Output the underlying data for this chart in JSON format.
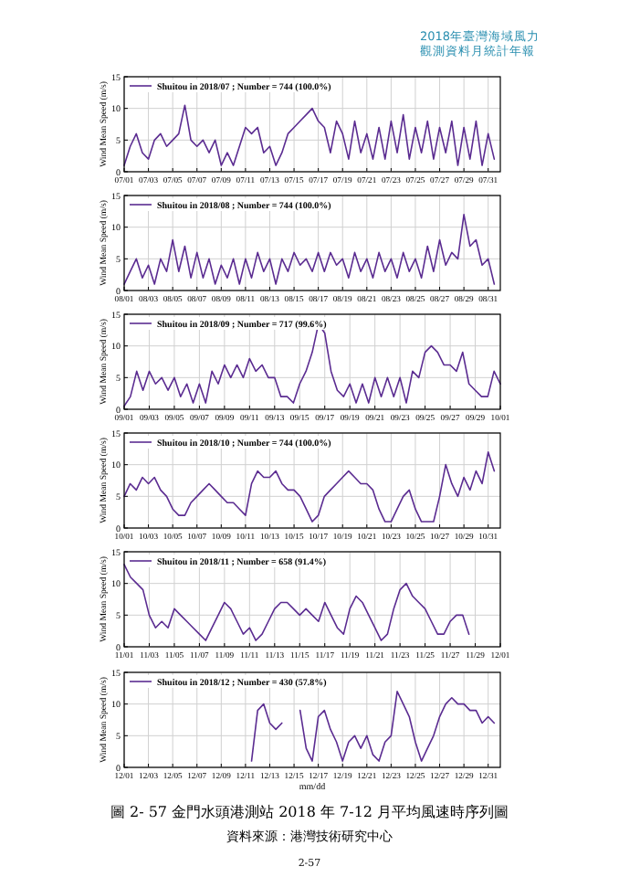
{
  "chart_data": [
    {
      "type": "line",
      "ylabel": "Wind Mean Speed (m/s)",
      "ylim": [
        0,
        15
      ],
      "yticks": [
        0,
        5,
        10,
        15
      ],
      "grid": true,
      "legend": "top left",
      "annotations": [
        "2018年臺灣海域風力",
        "觀測資料月統計年報"
      ],
      "xlim": [
        "2018-07-01",
        "2018-08-01"
      ],
      "xticks": [
        {
          "value": "2018-07-01",
          "label": "07/01"
        },
        {
          "value": "2018-07-03",
          "label": "07/03"
        },
        {
          "value": "2018-07-05",
          "label": "07/05"
        },
        {
          "value": "2018-07-07",
          "label": "07/07"
        },
        {
          "value": "2018-07-09",
          "label": "07/09"
        },
        {
          "value": "2018-07-11",
          "label": "07/11"
        },
        {
          "value": "2018-07-13",
          "label": "07/13"
        },
        {
          "value": "2018-07-15",
          "label": "07/15"
        },
        {
          "value": "2018-07-17",
          "label": "07/17"
        },
        {
          "value": "2018-07-19",
          "label": "07/19"
        },
        {
          "value": "2018-07-21",
          "label": "07/21"
        },
        {
          "value": "2018-07-23",
          "label": "07/23"
        },
        {
          "value": "2018-07-25",
          "label": "07/25"
        },
        {
          "value": "2018-07-27",
          "label": "07/27"
        },
        {
          "value": "2018-07-29",
          "label": "07/29"
        },
        {
          "value": "2018-07-31",
          "label": "07/31"
        }
      ],
      "series": [
        {
          "name": "Shuitou in 2018/07 ; Number = 744 (100.0%)",
          "color": "#5b2c91",
          "x": [
            "2018-07-01",
            "2018-07-01T12:00",
            "2018-07-02",
            "2018-07-02T12:00",
            "2018-07-03",
            "2018-07-03T12:00",
            "2018-07-04",
            "2018-07-04T12:00",
            "2018-07-05",
            "2018-07-05T12:00",
            "2018-07-06",
            "2018-07-06T12:00",
            "2018-07-07",
            "2018-07-07T12:00",
            "2018-07-08",
            "2018-07-08T12:00",
            "2018-07-09",
            "2018-07-09T12:00",
            "2018-07-10",
            "2018-07-10T12:00",
            "2018-07-11",
            "2018-07-11T12:00",
            "2018-07-12",
            "2018-07-12T12:00",
            "2018-07-13",
            "2018-07-13T12:00",
            "2018-07-14",
            "2018-07-14T12:00",
            "2018-07-15",
            "2018-07-15T12:00",
            "2018-07-16",
            "2018-07-16T12:00",
            "2018-07-17",
            "2018-07-17T12:00",
            "2018-07-18",
            "2018-07-18T12:00",
            "2018-07-19",
            "2018-07-19T12:00",
            "2018-07-20",
            "2018-07-20T12:00",
            "2018-07-21",
            "2018-07-21T12:00",
            "2018-07-22",
            "2018-07-22T12:00",
            "2018-07-23",
            "2018-07-23T12:00",
            "2018-07-24",
            "2018-07-24T12:00",
            "2018-07-25",
            "2018-07-25T12:00",
            "2018-07-26",
            "2018-07-26T12:00",
            "2018-07-27",
            "2018-07-27T12:00",
            "2018-07-28",
            "2018-07-28T12:00",
            "2018-07-29",
            "2018-07-29T12:00",
            "2018-07-30",
            "2018-07-30T12:00",
            "2018-07-31",
            "2018-07-31T12:00"
          ],
          "values": [
            1,
            4,
            6,
            3,
            2,
            5,
            6,
            4,
            5,
            6,
            10.5,
            5,
            4,
            5,
            3,
            5,
            1,
            3,
            1,
            4,
            7,
            6,
            7,
            3,
            4,
            1,
            3,
            6,
            7,
            8,
            9,
            10,
            8,
            7,
            3,
            8,
            6,
            2,
            8,
            3,
            6,
            2,
            7,
            2,
            8,
            3,
            9,
            2,
            7,
            3,
            8,
            2,
            7,
            3,
            8,
            1,
            7,
            2,
            8,
            1,
            6,
            2
          ]
        }
      ]
    },
    {
      "type": "line",
      "ylabel": "Wind Mean Speed (m/s)",
      "ylim": [
        0,
        15
      ],
      "yticks": [
        0,
        5,
        10,
        15
      ],
      "grid": true,
      "legend": "top left",
      "xlim": [
        "2018-08-01",
        "2018-09-01"
      ],
      "xticks": [
        {
          "value": "2018-08-01",
          "label": "08/01"
        },
        {
          "value": "2018-08-03",
          "label": "08/03"
        },
        {
          "value": "2018-08-05",
          "label": "08/05"
        },
        {
          "value": "2018-08-07",
          "label": "08/07"
        },
        {
          "value": "2018-08-09",
          "label": "08/09"
        },
        {
          "value": "2018-08-11",
          "label": "08/11"
        },
        {
          "value": "2018-08-13",
          "label": "08/13"
        },
        {
          "value": "2018-08-15",
          "label": "08/15"
        },
        {
          "value": "2018-08-17",
          "label": "08/17"
        },
        {
          "value": "2018-08-19",
          "label": "08/19"
        },
        {
          "value": "2018-08-21",
          "label": "08/21"
        },
        {
          "value": "2018-08-23",
          "label": "08/23"
        },
        {
          "value": "2018-08-25",
          "label": "08/25"
        },
        {
          "value": "2018-08-27",
          "label": "08/27"
        },
        {
          "value": "2018-08-29",
          "label": "08/29"
        },
        {
          "value": "2018-08-31",
          "label": "08/31"
        }
      ],
      "series": [
        {
          "name": "Shuitou in 2018/08 ; Number = 744 (100.0%)",
          "color": "#5b2c91",
          "x": [
            "2018-08-01",
            "2018-08-01T12:00",
            "2018-08-02",
            "2018-08-02T12:00",
            "2018-08-03",
            "2018-08-03T12:00",
            "2018-08-04",
            "2018-08-04T12:00",
            "2018-08-05",
            "2018-08-05T12:00",
            "2018-08-06",
            "2018-08-06T12:00",
            "2018-08-07",
            "2018-08-07T12:00",
            "2018-08-08",
            "2018-08-08T12:00",
            "2018-08-09",
            "2018-08-09T12:00",
            "2018-08-10",
            "2018-08-10T12:00",
            "2018-08-11",
            "2018-08-11T12:00",
            "2018-08-12",
            "2018-08-12T12:00",
            "2018-08-13",
            "2018-08-13T12:00",
            "2018-08-14",
            "2018-08-14T12:00",
            "2018-08-15",
            "2018-08-15T12:00",
            "2018-08-16",
            "2018-08-16T12:00",
            "2018-08-17",
            "2018-08-17T12:00",
            "2018-08-18",
            "2018-08-18T12:00",
            "2018-08-19",
            "2018-08-19T12:00",
            "2018-08-20",
            "2018-08-20T12:00",
            "2018-08-21",
            "2018-08-21T12:00",
            "2018-08-22",
            "2018-08-22T12:00",
            "2018-08-23",
            "2018-08-23T12:00",
            "2018-08-24",
            "2018-08-24T12:00",
            "2018-08-25",
            "2018-08-25T12:00",
            "2018-08-26",
            "2018-08-26T12:00",
            "2018-08-27",
            "2018-08-27T12:00",
            "2018-08-28",
            "2018-08-28T12:00",
            "2018-08-29",
            "2018-08-29T12:00",
            "2018-08-30",
            "2018-08-30T12:00",
            "2018-08-31",
            "2018-08-31T12:00"
          ],
          "values": [
            1,
            3,
            5,
            2,
            4,
            1,
            5,
            3,
            8,
            3,
            7,
            2,
            6,
            2,
            5,
            1,
            4,
            2,
            5,
            1,
            5,
            2,
            6,
            3,
            5,
            1,
            5,
            3,
            6,
            4,
            5,
            3,
            6,
            3,
            6,
            4,
            5,
            2,
            6,
            3,
            5,
            2,
            6,
            3,
            5,
            2,
            6,
            3,
            5,
            2,
            7,
            3,
            8,
            4,
            6,
            5,
            12,
            7,
            8,
            4,
            5,
            1
          ]
        }
      ]
    },
    {
      "type": "line",
      "ylabel": "Wind Mean Speed (m/s)",
      "ylim": [
        0,
        15
      ],
      "yticks": [
        0,
        5,
        10,
        15
      ],
      "grid": true,
      "legend": "top left",
      "xlim": [
        "2018-09-01",
        "2018-10-01"
      ],
      "xticks": [
        {
          "value": "2018-09-01",
          "label": "09/01"
        },
        {
          "value": "2018-09-03",
          "label": "09/03"
        },
        {
          "value": "2018-09-05",
          "label": "09/05"
        },
        {
          "value": "2018-09-07",
          "label": "09/07"
        },
        {
          "value": "2018-09-09",
          "label": "09/09"
        },
        {
          "value": "2018-09-11",
          "label": "09/11"
        },
        {
          "value": "2018-09-13",
          "label": "09/13"
        },
        {
          "value": "2018-09-15",
          "label": "09/15"
        },
        {
          "value": "2018-09-17",
          "label": "09/17"
        },
        {
          "value": "2018-09-19",
          "label": "09/19"
        },
        {
          "value": "2018-09-21",
          "label": "09/21"
        },
        {
          "value": "2018-09-23",
          "label": "09/23"
        },
        {
          "value": "2018-09-25",
          "label": "09/25"
        },
        {
          "value": "2018-09-27",
          "label": "09/27"
        },
        {
          "value": "2018-09-29",
          "label": "09/29"
        },
        {
          "value": "2018-10-01",
          "label": "10/01"
        }
      ],
      "series": [
        {
          "name": "Shuitou in 2018/09 ; Number = 717 (99.6%)",
          "color": "#5b2c91",
          "x": [
            "2018-09-01",
            "2018-09-01T12:00",
            "2018-09-02",
            "2018-09-02T12:00",
            "2018-09-03",
            "2018-09-03T12:00",
            "2018-09-04",
            "2018-09-04T12:00",
            "2018-09-05",
            "2018-09-05T12:00",
            "2018-09-06",
            "2018-09-06T12:00",
            "2018-09-07",
            "2018-09-07T12:00",
            "2018-09-08",
            "2018-09-08T12:00",
            "2018-09-09",
            "2018-09-09T12:00",
            "2018-09-10",
            "2018-09-10T12:00",
            "2018-09-11",
            "2018-09-11T12:00",
            "2018-09-12",
            "2018-09-12T12:00",
            "2018-09-13",
            "2018-09-13T12:00",
            "2018-09-14",
            "2018-09-14T12:00",
            "2018-09-15",
            "2018-09-15T12:00",
            "2018-09-16",
            "2018-09-16T12:00",
            "2018-09-17",
            "2018-09-17T12:00",
            "2018-09-18",
            "2018-09-18T12:00",
            "2018-09-19",
            "2018-09-19T12:00",
            "2018-09-20",
            "2018-09-20T12:00",
            "2018-09-21",
            "2018-09-21T12:00",
            "2018-09-22",
            "2018-09-22T12:00",
            "2018-09-23",
            "2018-09-23T12:00",
            "2018-09-24",
            "2018-09-24T12:00",
            "2018-09-25",
            "2018-09-25T12:00",
            "2018-09-26",
            "2018-09-26T12:00",
            "2018-09-27",
            "2018-09-27T12:00",
            "2018-09-28",
            "2018-09-28T12:00",
            "2018-09-29",
            "2018-09-29T12:00",
            "2018-09-30",
            "2018-09-30T12:00",
            "2018-10-01"
          ],
          "values": [
            0.5,
            2,
            6,
            3,
            6,
            4,
            5,
            3,
            5,
            2,
            4,
            1,
            4,
            1,
            6,
            4,
            7,
            5,
            7,
            5,
            8,
            6,
            7,
            5,
            5,
            2,
            2,
            1,
            4,
            6,
            9,
            13.5,
            12,
            6,
            3,
            2,
            4,
            1,
            4,
            1,
            5,
            2,
            5,
            2,
            5,
            1,
            6,
            5,
            9,
            10,
            9,
            7,
            7,
            6,
            9,
            4,
            3,
            2,
            2,
            6,
            4
          ]
        }
      ]
    },
    {
      "type": "line",
      "ylabel": "Wind Mean Speed (m/s)",
      "ylim": [
        0,
        15
      ],
      "yticks": [
        0,
        5,
        10,
        15
      ],
      "grid": true,
      "legend": "top left",
      "xlim": [
        "2018-10-01",
        "2018-11-01"
      ],
      "xticks": [
        {
          "value": "2018-10-01",
          "label": "10/01"
        },
        {
          "value": "2018-10-03",
          "label": "10/03"
        },
        {
          "value": "2018-10-05",
          "label": "10/05"
        },
        {
          "value": "2018-10-07",
          "label": "10/07"
        },
        {
          "value": "2018-10-09",
          "label": "10/09"
        },
        {
          "value": "2018-10-11",
          "label": "10/11"
        },
        {
          "value": "2018-10-13",
          "label": "10/13"
        },
        {
          "value": "2018-10-15",
          "label": "10/15"
        },
        {
          "value": "2018-10-17",
          "label": "10/17"
        },
        {
          "value": "2018-10-19",
          "label": "10/19"
        },
        {
          "value": "2018-10-21",
          "label": "10/21"
        },
        {
          "value": "2018-10-23",
          "label": "10/23"
        },
        {
          "value": "2018-10-25",
          "label": "10/25"
        },
        {
          "value": "2018-10-27",
          "label": "10/27"
        },
        {
          "value": "2018-10-29",
          "label": "10/29"
        },
        {
          "value": "2018-10-31",
          "label": "10/31"
        }
      ],
      "series": [
        {
          "name": "Shuitou in 2018/10 ; Number = 744 (100.0%)",
          "color": "#5b2c91",
          "x": [
            "2018-10-01",
            "2018-10-01T12:00",
            "2018-10-02",
            "2018-10-02T12:00",
            "2018-10-03",
            "2018-10-03T12:00",
            "2018-10-04",
            "2018-10-04T12:00",
            "2018-10-05",
            "2018-10-05T12:00",
            "2018-10-06",
            "2018-10-06T12:00",
            "2018-10-07",
            "2018-10-07T12:00",
            "2018-10-08",
            "2018-10-08T12:00",
            "2018-10-09",
            "2018-10-09T12:00",
            "2018-10-10",
            "2018-10-10T12:00",
            "2018-10-11",
            "2018-10-11T12:00",
            "2018-10-12",
            "2018-10-12T12:00",
            "2018-10-13",
            "2018-10-13T12:00",
            "2018-10-14",
            "2018-10-14T12:00",
            "2018-10-15",
            "2018-10-15T12:00",
            "2018-10-16",
            "2018-10-16T12:00",
            "2018-10-17",
            "2018-10-17T12:00",
            "2018-10-18",
            "2018-10-18T12:00",
            "2018-10-19",
            "2018-10-19T12:00",
            "2018-10-20",
            "2018-10-20T12:00",
            "2018-10-21",
            "2018-10-21T12:00",
            "2018-10-22",
            "2018-10-22T12:00",
            "2018-10-23",
            "2018-10-23T12:00",
            "2018-10-24",
            "2018-10-24T12:00",
            "2018-10-25",
            "2018-10-25T12:00",
            "2018-10-26",
            "2018-10-26T12:00",
            "2018-10-27",
            "2018-10-27T12:00",
            "2018-10-28",
            "2018-10-28T12:00",
            "2018-10-29",
            "2018-10-29T12:00",
            "2018-10-30",
            "2018-10-30T12:00",
            "2018-10-31",
            "2018-10-31T12:00"
          ],
          "values": [
            5,
            7,
            6,
            8,
            7,
            8,
            6,
            5,
            3,
            2,
            2,
            4,
            5,
            6,
            7,
            6,
            5,
            4,
            4,
            3,
            2,
            7,
            9,
            8,
            8,
            9,
            7,
            6,
            6,
            5,
            3,
            1,
            2,
            5,
            6,
            7,
            8,
            9,
            8,
            7,
            7,
            6,
            3,
            1,
            1,
            3,
            5,
            6,
            3,
            1,
            1,
            1,
            5,
            10,
            7,
            5,
            8,
            6,
            9,
            7,
            12,
            9
          ]
        }
      ]
    },
    {
      "type": "line",
      "ylabel": "Wind Mean Speed (m/s)",
      "ylim": [
        0,
        15
      ],
      "yticks": [
        0,
        5,
        10,
        15
      ],
      "grid": true,
      "legend": "top left",
      "xlim": [
        "2018-11-01",
        "2018-12-01"
      ],
      "xticks": [
        {
          "value": "2018-11-01",
          "label": "11/01"
        },
        {
          "value": "2018-11-03",
          "label": "11/03"
        },
        {
          "value": "2018-11-05",
          "label": "11/05"
        },
        {
          "value": "2018-11-07",
          "label": "11/07"
        },
        {
          "value": "2018-11-09",
          "label": "11/09"
        },
        {
          "value": "2018-11-11",
          "label": "11/11"
        },
        {
          "value": "2018-11-13",
          "label": "11/13"
        },
        {
          "value": "2018-11-15",
          "label": "11/15"
        },
        {
          "value": "2018-11-17",
          "label": "11/17"
        },
        {
          "value": "2018-11-19",
          "label": "11/19"
        },
        {
          "value": "2018-11-21",
          "label": "11/21"
        },
        {
          "value": "2018-11-23",
          "label": "11/23"
        },
        {
          "value": "2018-11-25",
          "label": "11/25"
        },
        {
          "value": "2018-11-27",
          "label": "11/27"
        },
        {
          "value": "2018-11-29",
          "label": "11/29"
        },
        {
          "value": "2018-12-01",
          "label": "12/01"
        }
      ],
      "series": [
        {
          "name": "Shuitou in 2018/11 ; Number = 658 (91.4%)",
          "color": "#5b2c91",
          "x": [
            "2018-11-01",
            "2018-11-01T12:00",
            "2018-11-02",
            "2018-11-02T12:00",
            "2018-11-03",
            "2018-11-03T12:00",
            "2018-11-04",
            "2018-11-04T12:00",
            "2018-11-05",
            "2018-11-05T12:00",
            "2018-11-06",
            "2018-11-06T12:00",
            "2018-11-07",
            "2018-11-07T12:00",
            "2018-11-08",
            "2018-11-08T12:00",
            "2018-11-09",
            "2018-11-09T12:00",
            "2018-11-10",
            "2018-11-10T12:00",
            "2018-11-11",
            "2018-11-11T12:00",
            "2018-11-12",
            "2018-11-12T12:00",
            "2018-11-13",
            "2018-11-13T12:00",
            "2018-11-14",
            "2018-11-14T12:00",
            "2018-11-15",
            "2018-11-15T12:00",
            "2018-11-16",
            "2018-11-16T12:00",
            "2018-11-17",
            "2018-11-17T12:00",
            "2018-11-18",
            "2018-11-18T12:00",
            "2018-11-19",
            "2018-11-19T12:00",
            "2018-11-20",
            "2018-11-20T12:00",
            "2018-11-21",
            "2018-11-21T12:00",
            "2018-11-22",
            "2018-11-22T12:00",
            "2018-11-23",
            "2018-11-23T12:00",
            "2018-11-24",
            "2018-11-24T12:00",
            "2018-11-25",
            "2018-11-25T12:00",
            "2018-11-26",
            "2018-11-26T12:00",
            "2018-11-27",
            "2018-11-27T12:00",
            "2018-11-28",
            "2018-11-28T12:00"
          ],
          "values": [
            13,
            11,
            10,
            9,
            5,
            3,
            4,
            3,
            6,
            5,
            4,
            3,
            2,
            1,
            3,
            5,
            7,
            6,
            4,
            2,
            3,
            1,
            2,
            4,
            6,
            7,
            7,
            6,
            5,
            6,
            5,
            4,
            7,
            5,
            3,
            2,
            6,
            8,
            7,
            5,
            3,
            1,
            2,
            6,
            9,
            10,
            8,
            7,
            6,
            4,
            2,
            2,
            4,
            5,
            5,
            2
          ]
        }
      ]
    },
    {
      "type": "line",
      "ylabel": "Wind Mean Speed (m/s)",
      "xlabel": "mm/dd",
      "ylim": [
        0,
        15
      ],
      "yticks": [
        0,
        5,
        10,
        15
      ],
      "grid": true,
      "legend": "top left",
      "annotations": [
        "圖 2- 57  金門水頭港測站 2018 年 7-12 月平均風速時序列圖",
        "資料來源：港灣技術研究中心",
        "2-57"
      ],
      "xlim": [
        "2018-12-01",
        "2019-01-01"
      ],
      "xticks": [
        {
          "value": "2018-12-01",
          "label": "12/01"
        },
        {
          "value": "2018-12-03",
          "label": "12/03"
        },
        {
          "value": "2018-12-05",
          "label": "12/05"
        },
        {
          "value": "2018-12-07",
          "label": "12/07"
        },
        {
          "value": "2018-12-09",
          "label": "12/09"
        },
        {
          "value": "2018-12-11",
          "label": "12/11"
        },
        {
          "value": "2018-12-13",
          "label": "12/13"
        },
        {
          "value": "2018-12-15",
          "label": "12/15"
        },
        {
          "value": "2018-12-17",
          "label": "12/17"
        },
        {
          "value": "2018-12-19",
          "label": "12/19"
        },
        {
          "value": "2018-12-21",
          "label": "12/21"
        },
        {
          "value": "2018-12-23",
          "label": "12/23"
        },
        {
          "value": "2018-12-25",
          "label": "12/25"
        },
        {
          "value": "2018-12-27",
          "label": "12/27"
        },
        {
          "value": "2018-12-29",
          "label": "12/29"
        },
        {
          "value": "2018-12-31",
          "label": "12/31"
        }
      ],
      "series": [
        {
          "name": "Shuitou in 2018/12 ; Number = 430 (57.8%)",
          "color": "#5b2c91",
          "x": [
            "2018-12-11T12:00",
            "2018-12-12",
            "2018-12-12T12:00",
            "2018-12-13",
            "2018-12-13T12:00",
            "2018-12-14",
            "2018-12-14T12:00",
            "2018-12-15",
            "2018-12-15T12:00",
            "2018-12-16",
            "2018-12-16T12:00",
            "2018-12-17",
            "2018-12-17T12:00",
            "2018-12-18",
            "2018-12-18T12:00",
            "2018-12-19",
            "2018-12-19T12:00",
            "2018-12-20",
            "2018-12-20T12:00",
            "2018-12-21",
            "2018-12-21T12:00",
            "2018-12-22",
            "2018-12-22T12:00",
            "2018-12-23",
            "2018-12-23T12:00",
            "2018-12-24",
            "2018-12-24T12:00",
            "2018-12-25",
            "2018-12-25T12:00",
            "2018-12-26",
            "2018-12-26T12:00",
            "2018-12-27",
            "2018-12-27T12:00",
            "2018-12-28",
            "2018-12-28T12:00",
            "2018-12-29",
            "2018-12-29T12:00",
            "2018-12-30",
            "2018-12-30T12:00",
            "2018-12-31",
            "2018-12-31T12:00"
          ],
          "values": [
            1,
            9,
            10,
            7,
            6,
            7,
            null,
            null,
            9,
            3,
            1,
            8,
            9,
            6,
            4,
            1,
            4,
            5,
            3,
            5,
            2,
            1,
            4,
            5,
            12,
            10,
            8,
            4,
            1,
            3,
            5,
            8,
            10,
            11,
            10,
            10,
            9,
            9,
            7,
            8,
            7
          ]
        }
      ]
    }
  ]
}
